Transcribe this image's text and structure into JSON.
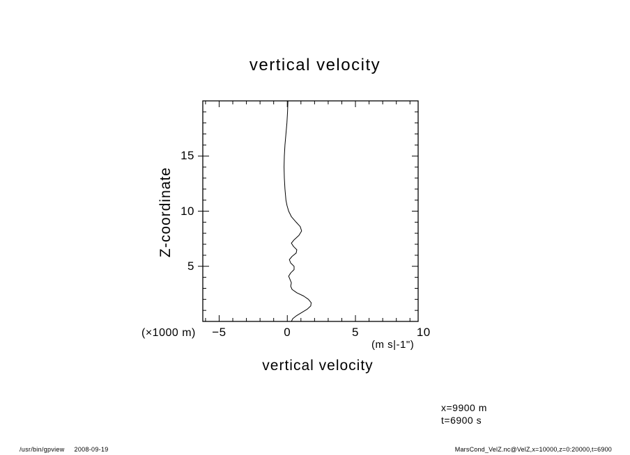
{
  "page": {
    "background": "#ffffff",
    "foreground": "#000000"
  },
  "chart_data": {
    "type": "line",
    "title": "vertical velocity",
    "xlabel": "vertical velocity",
    "x_unit_label": "(m s|-1\")",
    "ylabel": "Z-coordinate",
    "y_unit_label": "(×1000 m)",
    "xlim": [
      -6.2,
      9.6
    ],
    "ylim": [
      0,
      20
    ],
    "x_ticks": [
      -5,
      0,
      5,
      10
    ],
    "y_ticks": [
      5,
      10,
      15
    ],
    "x_minor_step": 1,
    "y_minor_step": 1,
    "grid": false,
    "legend": "none",
    "line_color": "#000000",
    "series": [
      {
        "name": "VelZ",
        "x_meaning": "vertical velocity (m/s)",
        "y_meaning": "Z-coordinate (x1000 m)",
        "points": [
          [
            0.05,
            20.0
          ],
          [
            0.02,
            19.0
          ],
          [
            -0.03,
            18.0
          ],
          [
            -0.1,
            17.0
          ],
          [
            -0.17,
            16.0
          ],
          [
            -0.22,
            15.0
          ],
          [
            -0.24,
            14.0
          ],
          [
            -0.22,
            13.0
          ],
          [
            -0.17,
            12.0
          ],
          [
            -0.1,
            11.0
          ],
          [
            -0.02,
            10.5
          ],
          [
            0.1,
            10.0
          ],
          [
            0.3,
            9.5
          ],
          [
            0.65,
            9.0
          ],
          [
            0.95,
            8.6
          ],
          [
            1.05,
            8.2
          ],
          [
            0.85,
            7.8
          ],
          [
            0.5,
            7.4
          ],
          [
            0.3,
            7.1
          ],
          [
            0.45,
            6.8
          ],
          [
            0.7,
            6.5
          ],
          [
            0.65,
            6.2
          ],
          [
            0.35,
            5.9
          ],
          [
            0.15,
            5.6
          ],
          [
            0.25,
            5.3
          ],
          [
            0.5,
            5.0
          ],
          [
            0.5,
            4.7
          ],
          [
            0.25,
            4.4
          ],
          [
            0.1,
            4.1
          ],
          [
            0.2,
            3.8
          ],
          [
            0.3,
            3.5
          ],
          [
            0.25,
            3.2
          ],
          [
            0.35,
            2.9
          ],
          [
            0.7,
            2.6
          ],
          [
            1.2,
            2.3
          ],
          [
            1.55,
            2.0
          ],
          [
            1.75,
            1.7
          ],
          [
            1.72,
            1.4
          ],
          [
            1.45,
            1.1
          ],
          [
            1.05,
            0.8
          ],
          [
            0.65,
            0.5
          ],
          [
            0.4,
            0.25
          ],
          [
            0.3,
            0.0
          ]
        ]
      }
    ]
  },
  "annotations": {
    "line1": "x=9900 m",
    "line2": "t=6900 s"
  },
  "footer": {
    "program": "/usr/bin/gpview",
    "date": "2008-09-19",
    "right": "MarsCond_VelZ.nc@VelZ,x=10000,z=0:20000,t=6900"
  }
}
